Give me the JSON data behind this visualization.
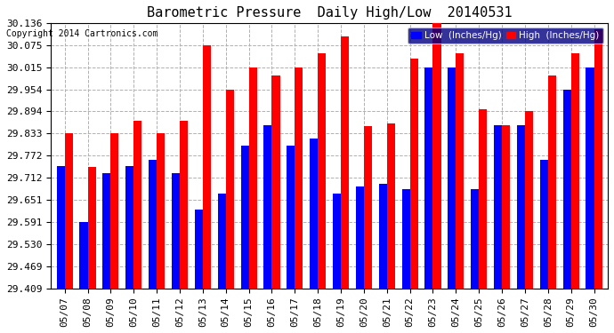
{
  "title": "Barometric Pressure  Daily High/Low  20140531",
  "copyright": "Copyright 2014 Cartronics.com",
  "legend_low": "Low  (Inches/Hg)",
  "legend_high": "High  (Inches/Hg)",
  "dates": [
    "05/07",
    "05/08",
    "05/09",
    "05/10",
    "05/11",
    "05/12",
    "05/13",
    "05/14",
    "05/15",
    "05/16",
    "05/17",
    "05/18",
    "05/19",
    "05/20",
    "05/21",
    "05/22",
    "05/23",
    "05/24",
    "05/25",
    "05/26",
    "05/27",
    "05/28",
    "05/29",
    "05/30"
  ],
  "low": [
    29.744,
    29.591,
    29.724,
    29.744,
    29.762,
    29.724,
    29.624,
    29.669,
    29.8,
    29.857,
    29.8,
    29.82,
    29.669,
    29.687,
    29.694,
    29.68,
    30.015,
    30.015,
    29.68,
    29.857,
    29.857,
    29.762,
    29.954,
    30.015
  ],
  "high": [
    29.833,
    29.741,
    29.833,
    29.869,
    29.833,
    29.869,
    30.075,
    29.954,
    30.015,
    29.993,
    30.015,
    30.054,
    30.1,
    29.854,
    29.861,
    30.039,
    30.136,
    30.054,
    29.9,
    29.857,
    29.894,
    29.993,
    30.054,
    30.118
  ],
  "ymin": 29.409,
  "ymax": 30.136,
  "yticks": [
    29.409,
    29.469,
    29.53,
    29.591,
    29.651,
    29.712,
    29.772,
    29.833,
    29.894,
    29.954,
    30.015,
    30.075,
    30.136
  ],
  "bar_width": 0.35,
  "low_color": "#0000ff",
  "high_color": "#ff0000",
  "bg_color": "#ffffff",
  "grid_color": "#b0b0b0",
  "title_fontsize": 11,
  "tick_fontsize": 8,
  "legend_fontsize": 7.5
}
